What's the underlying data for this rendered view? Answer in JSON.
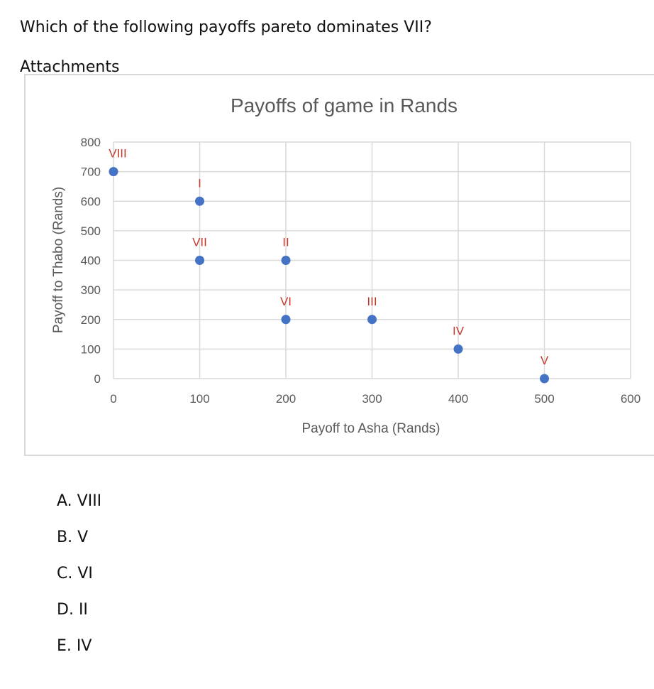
{
  "question": "Which of the following payoffs pareto dominates VII?",
  "attachments_label": "Attachments",
  "options": [
    {
      "letter": "A.",
      "text": "VIII"
    },
    {
      "letter": "B.",
      "text": "V"
    },
    {
      "letter": "C.",
      "text": "VI"
    },
    {
      "letter": "D.",
      "text": "II"
    },
    {
      "letter": "E.",
      "text": "IV"
    }
  ],
  "colors": {
    "point": "#4472c4",
    "point_label": "#c0392b",
    "grid": "#d9d9d9",
    "axis_text": "#595959"
  },
  "chart_data": {
    "type": "scatter",
    "title": "Payoffs of game in Rands",
    "xlabel": "Payoff to Asha (Rands)",
    "ylabel": "Payoff to Thabo (Rands)",
    "xlim": [
      0,
      600
    ],
    "ylim": [
      0,
      800
    ],
    "xticks": [
      0,
      100,
      200,
      300,
      400,
      500,
      600
    ],
    "yticks": [
      0,
      100,
      200,
      300,
      400,
      500,
      600,
      700,
      800
    ],
    "grid": true,
    "points": [
      {
        "label": "VIII",
        "x": 0,
        "y": 700
      },
      {
        "label": "I",
        "x": 100,
        "y": 600
      },
      {
        "label": "VII",
        "x": 100,
        "y": 400
      },
      {
        "label": "II",
        "x": 200,
        "y": 400
      },
      {
        "label": "VI",
        "x": 200,
        "y": 200
      },
      {
        "label": "III",
        "x": 300,
        "y": 200
      },
      {
        "label": "IV",
        "x": 400,
        "y": 100
      },
      {
        "label": "V",
        "x": 500,
        "y": 0
      }
    ]
  }
}
